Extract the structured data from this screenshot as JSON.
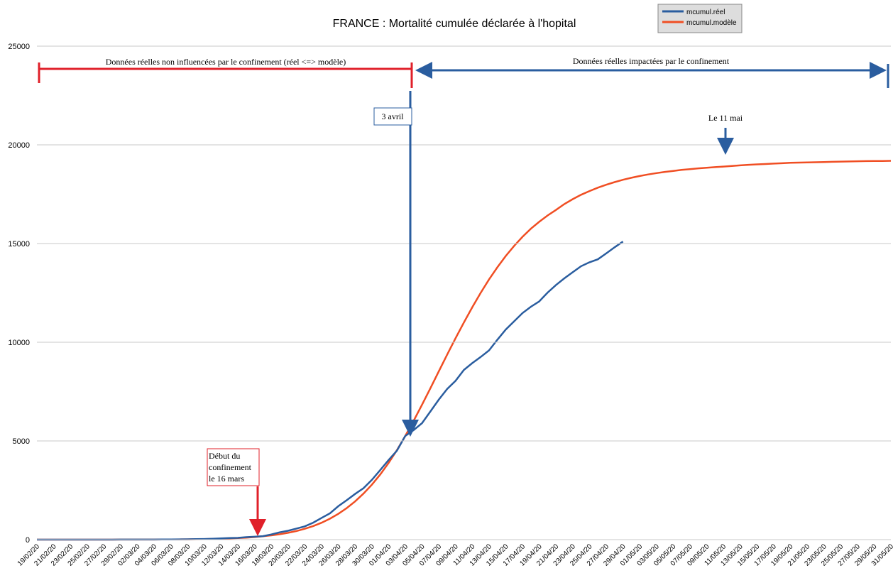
{
  "chart_data": {
    "type": "line",
    "title": "FRANCE : Mortalité cumulée déclarée à l'hopital",
    "categories": [
      "19/02/20",
      null,
      "21/02/20",
      null,
      "23/02/20",
      null,
      "25/02/20",
      null,
      "27/02/20",
      null,
      "29/02/20",
      null,
      "02/03/20",
      null,
      "04/03/20",
      null,
      "06/03/20",
      null,
      "08/03/20",
      null,
      "10/03/20",
      null,
      "12/03/20",
      null,
      "14/03/20",
      null,
      "16/03/20",
      null,
      "18/03/20",
      null,
      "20/03/20",
      null,
      "22/03/20",
      null,
      "24/03/20",
      null,
      "26/03/20",
      null,
      "28/03/20",
      null,
      "30/03/20",
      null,
      "01/04/20",
      null,
      "03/04/20",
      null,
      "05/04/20",
      null,
      "07/04/20",
      null,
      "09/04/20",
      null,
      "11/04/20",
      null,
      "13/04/20",
      null,
      "15/04/20",
      null,
      "17/04/20",
      null,
      "19/04/20",
      null,
      "21/04/20",
      null,
      "23/04/20",
      null,
      "25/04/20",
      null,
      "27/04/20",
      null,
      "29/04/20",
      null,
      "01/05/20",
      null,
      "03/05/20",
      null,
      "05/05/20",
      null,
      "07/05/20",
      null,
      "09/05/20",
      null,
      "11/05/20",
      null,
      "13/05/20",
      null,
      "15/05/20",
      null,
      "17/05/20",
      null,
      "19/05/20",
      null,
      "21/05/20",
      null,
      "23/05/20",
      null,
      "25/05/20",
      null,
      "27/05/20",
      null,
      "29/05/20",
      null,
      "31/05/20"
    ],
    "series": [
      {
        "name": "mcumul.réel",
        "color": "#2a5d9f",
        "values": [
          0,
          0,
          0,
          0,
          0,
          0,
          0,
          0,
          1,
          1,
          2,
          2,
          3,
          4,
          4,
          6,
          9,
          16,
          19,
          25,
          33,
          48,
          61,
          79,
          91,
          127,
          148,
          175,
          264,
          372,
          450,
          562,
          674,
          860,
          1100,
          1331,
          1696,
          1995,
          2314,
          2606,
          3024,
          3523,
          4032,
          4503,
          5250,
          5550,
          5900,
          6494,
          7091,
          7632,
          8044,
          8598,
          8943,
          9252,
          9588,
          10129,
          10643,
          11060,
          11478,
          11800,
          12069,
          12513,
          12900,
          13236,
          13547,
          13852,
          14050,
          14202,
          14500,
          14810,
          15100,
          null,
          null,
          null,
          null,
          null,
          null,
          null,
          null,
          null,
          null,
          null,
          null,
          null,
          null,
          null,
          null,
          null,
          null,
          null,
          null,
          null,
          null,
          null,
          null,
          null,
          null,
          null,
          null,
          null,
          null,
          null,
          null
        ]
      },
      {
        "name": "mcumul.modèle",
        "color": "#f04e23",
        "values": [
          0,
          0,
          0,
          0,
          0,
          0,
          1,
          1,
          1,
          1,
          2,
          2,
          3,
          4,
          5,
          7,
          9,
          12,
          16,
          21,
          28,
          36,
          47,
          61,
          79,
          102,
          131,
          168,
          215,
          273,
          346,
          437,
          549,
          687,
          856,
          1060,
          1305,
          1596,
          1937,
          2332,
          2782,
          3300,
          3880,
          4530,
          5250,
          6020,
          6830,
          7670,
          8520,
          9370,
          10200,
          11000,
          11770,
          12500,
          13180,
          13800,
          14370,
          14880,
          15340,
          15750,
          16100,
          16420,
          16700,
          17000,
          17250,
          17470,
          17660,
          17830,
          17980,
          18110,
          18230,
          18330,
          18420,
          18500,
          18570,
          18630,
          18680,
          18730,
          18770,
          18810,
          18840,
          18870,
          18900,
          18930,
          18960,
          18990,
          19010,
          19030,
          19050,
          19070,
          19090,
          19100,
          19110,
          19120,
          19130,
          19140,
          19150,
          19160,
          19170,
          19175,
          19180,
          19185,
          19190
        ]
      }
    ],
    "ylim": [
      0,
      25000
    ],
    "yticks": [
      0,
      5000,
      10000,
      15000,
      20000,
      25000
    ],
    "grid": true,
    "legend": "top-right",
    "annotations": {
      "before": "Données réelles non influencées par le confinement (réel <=> modèle)",
      "after": "Données réelles impactées par le confinement",
      "april": "3 avril",
      "may": "Le 11 mai",
      "lockdown": [
        "Début du",
        "confinement",
        "le 16 mars"
      ]
    }
  }
}
